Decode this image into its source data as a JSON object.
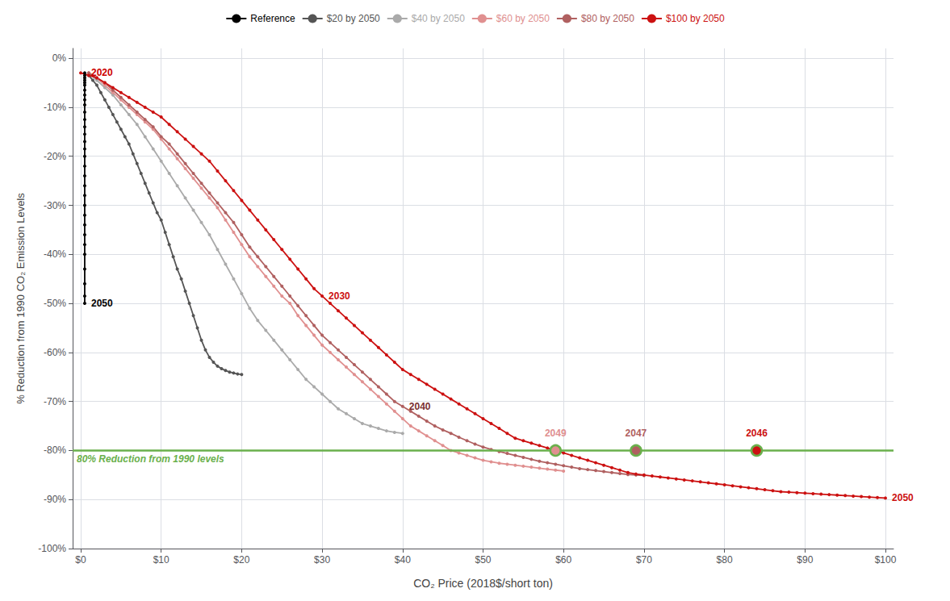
{
  "chart_data": {
    "type": "line",
    "xlabel": "CO₂ Price (2018$/short ton)",
    "ylabel": "% Reduction from 1990 CO₂ Emission Levels",
    "grid": true,
    "legend": "top",
    "marker": "circle",
    "xlim": [
      -1,
      101
    ],
    "ylim": [
      -100,
      2
    ],
    "xticks": [
      {
        "value": 0,
        "label": "$0"
      },
      {
        "value": 10,
        "label": "$10"
      },
      {
        "value": 20,
        "label": "$20"
      },
      {
        "value": 30,
        "label": "$30"
      },
      {
        "value": 40,
        "label": "$40"
      },
      {
        "value": 50,
        "label": "$50"
      },
      {
        "value": 60,
        "label": "$60"
      },
      {
        "value": 70,
        "label": "$70"
      },
      {
        "value": 80,
        "label": "$80"
      },
      {
        "value": 90,
        "label": "$90"
      },
      {
        "value": 100,
        "label": "$100"
      }
    ],
    "yticks": [
      {
        "value": 0,
        "label": "0%"
      },
      {
        "value": -10,
        "label": "-10%"
      },
      {
        "value": -20,
        "label": "-20%"
      },
      {
        "value": -30,
        "label": "-30%"
      },
      {
        "value": -40,
        "label": "-40%"
      },
      {
        "value": -50,
        "label": "-50%"
      },
      {
        "value": -60,
        "label": "-60%"
      },
      {
        "value": -70,
        "label": "-70%"
      },
      {
        "value": -80,
        "label": "-80%"
      },
      {
        "value": -90,
        "label": "-90%"
      },
      {
        "value": -100,
        "label": "-100%"
      }
    ],
    "reference_line": {
      "y": -80,
      "label": "80% Reduction from 1990 levels",
      "color": "#6ab04c"
    },
    "annotations": [
      {
        "text": "2020",
        "x": 0.5,
        "y": -3.0,
        "color": "#cc0000"
      },
      {
        "text": "2050",
        "x": 0.5,
        "y": -50.0,
        "color": "#000000"
      },
      {
        "text": "2040",
        "x": 40,
        "y": -71.0,
        "color": "#7a3030"
      },
      {
        "text": "2030",
        "x": 30,
        "y": -48.5,
        "color": "#cc1111"
      },
      {
        "text": "2050",
        "x": 100,
        "y": -89.7,
        "color": "#cc1111"
      }
    ],
    "series": [
      {
        "name": "Reference",
        "color": "#000000",
        "x": [
          0.5,
          0.5,
          0.5,
          0.5,
          0.5,
          0.5,
          0.5,
          0.5,
          0.5,
          0.5,
          0.5,
          0.5,
          0.5,
          0.5,
          0.5,
          0.5,
          0.5,
          0.5,
          0.5,
          0.5,
          0.5,
          0.5,
          0.5,
          0.5,
          0.5,
          0.5,
          0.5,
          0.5,
          0.5,
          0.5,
          0.5
        ],
        "values": [
          -3.0,
          -3.5,
          -4.0,
          -4.5,
          -5.0,
          -5.5,
          -6.5,
          -7.5,
          -8.5,
          -9.5,
          -11.0,
          -12.5,
          -14.0,
          -15.5,
          -17.0,
          -18.5,
          -20.0,
          -22.0,
          -24.0,
          -26.0,
          -28.0,
          -30.0,
          -32.0,
          -34.0,
          -36.0,
          -38.0,
          -40.0,
          -43.0,
          -46.0,
          -48.5,
          -50.0
        ]
      },
      {
        "name": "$20 by 2050",
        "color": "#555555",
        "x": [
          1,
          1.5,
          2,
          2.5,
          3,
          3.5,
          4,
          4.5,
          5,
          5.5,
          6,
          6.5,
          7,
          7.5,
          8,
          8.5,
          9,
          9.5,
          10,
          10.5,
          11,
          11.5,
          12,
          12.5,
          13,
          13.5,
          14,
          14.5,
          15,
          15.5,
          16,
          16.5,
          17,
          17.5,
          18,
          18.5,
          19,
          19.5,
          20
        ],
        "values": [
          -3.5,
          -4.5,
          -5.5,
          -7.0,
          -8.5,
          -10.0,
          -11.5,
          -13.0,
          -14.5,
          -16.0,
          -17.5,
          -19.5,
          -21.5,
          -23.5,
          -25.5,
          -27.5,
          -29.5,
          -31.5,
          -33.0,
          -35.5,
          -38.0,
          -40.5,
          -43.0,
          -45.0,
          -47.5,
          -50.0,
          -52.5,
          -55.0,
          -57.5,
          -59.5,
          -61.0,
          -62.0,
          -62.8,
          -63.3,
          -63.7,
          -64.0,
          -64.2,
          -64.4,
          -64.5
        ]
      },
      {
        "name": "$40 by 2050",
        "color": "#aaaaaa",
        "x": [
          1,
          2,
          3,
          4,
          5,
          6,
          7,
          8,
          9,
          10,
          11,
          12,
          13,
          14,
          15,
          16,
          17,
          18,
          19,
          20,
          21,
          22,
          23,
          24,
          25,
          26,
          27,
          28,
          29,
          30,
          31,
          32,
          33,
          34,
          35,
          36,
          37,
          38,
          39,
          40
        ],
        "values": [
          -3.0,
          -4.5,
          -6.0,
          -7.5,
          -9.5,
          -11.5,
          -13.5,
          -16.0,
          -18.5,
          -21.0,
          -23.5,
          -26.0,
          -28.5,
          -31.0,
          -33.5,
          -36.0,
          -39.0,
          -42.0,
          -45.0,
          -48.0,
          -51.0,
          -53.5,
          -55.5,
          -57.5,
          -59.5,
          -61.5,
          -63.5,
          -65.5,
          -67.0,
          -68.5,
          -70.0,
          -71.5,
          -72.5,
          -73.5,
          -74.5,
          -75.0,
          -75.5,
          -76.0,
          -76.3,
          -76.5
        ]
      },
      {
        "name": "$60 by 2050",
        "color": "#e09090",
        "x": [
          1,
          2,
          3,
          4,
          5,
          6,
          7,
          8,
          9,
          10,
          11,
          12,
          13,
          14,
          15,
          16,
          17,
          18,
          19,
          20,
          21,
          22,
          23,
          24,
          25,
          26,
          27,
          28,
          29,
          30,
          31,
          32,
          33,
          34,
          35,
          36,
          37,
          38,
          39,
          40,
          41,
          42,
          43,
          44,
          45,
          46,
          47,
          48,
          49,
          50,
          51,
          52,
          53,
          54,
          55,
          56,
          57,
          58,
          59,
          60
        ],
        "values": [
          -3.0,
          -4.0,
          -5.5,
          -7.0,
          -8.5,
          -10.0,
          -11.5,
          -13.0,
          -14.5,
          -16.5,
          -18.5,
          -20.5,
          -22.5,
          -24.5,
          -26.5,
          -28.5,
          -30.5,
          -33.0,
          -35.5,
          -38.0,
          -40.5,
          -42.5,
          -44.5,
          -46.5,
          -48.5,
          -50.0,
          -52.5,
          -54.5,
          -56.5,
          -58.5,
          -60.0,
          -61.5,
          -63.0,
          -64.5,
          -66.0,
          -67.5,
          -69.0,
          -70.5,
          -72.0,
          -73.5,
          -75.0,
          -76.0,
          -77.0,
          -78.0,
          -79.0,
          -80.0,
          -80.5,
          -81.0,
          -81.5,
          -82.0,
          -82.3,
          -82.6,
          -82.8,
          -83.0,
          -83.2,
          -83.4,
          -83.6,
          -83.8,
          -84.0,
          -84.2
        ],
        "crossing": {
          "x": 59,
          "y": -80,
          "label": "2049"
        }
      },
      {
        "name": "$80 by 2050",
        "color": "#b06060",
        "x": [
          1,
          2,
          3,
          4,
          5,
          6,
          7,
          8,
          9,
          10,
          11,
          12,
          13,
          14,
          15,
          16,
          17,
          18,
          19,
          20,
          21,
          22,
          23,
          24,
          25,
          26,
          27,
          28,
          29,
          30,
          31,
          32,
          33,
          34,
          35,
          36,
          37,
          38,
          39,
          40,
          41,
          42,
          43,
          44,
          45,
          46,
          47,
          48,
          49,
          50,
          51,
          52,
          53,
          54,
          55,
          56,
          57,
          58,
          59,
          60,
          61,
          62,
          63,
          64,
          65,
          66,
          67,
          68,
          69,
          70
        ],
        "values": [
          -3.0,
          -4.0,
          -5.0,
          -6.5,
          -8.0,
          -9.5,
          -11.0,
          -12.5,
          -14.0,
          -16.0,
          -17.5,
          -19.5,
          -21.5,
          -23.5,
          -25.5,
          -27.5,
          -29.5,
          -31.5,
          -33.5,
          -36.0,
          -38.5,
          -40.5,
          -42.5,
          -44.5,
          -46.5,
          -48.5,
          -50.5,
          -52.5,
          -54.5,
          -56.5,
          -58.0,
          -59.5,
          -61.0,
          -62.5,
          -64.0,
          -65.5,
          -67.0,
          -68.5,
          -70.0,
          -71.0,
          -72.0,
          -73.0,
          -74.0,
          -75.0,
          -75.8,
          -76.5,
          -77.3,
          -78.0,
          -78.7,
          -79.3,
          -79.8,
          -80.2,
          -80.6,
          -81.0,
          -81.4,
          -81.8,
          -82.2,
          -82.5,
          -82.8,
          -83.1,
          -83.4,
          -83.7,
          -83.9,
          -84.1,
          -84.3,
          -84.5,
          -84.7,
          -84.9,
          -85.0,
          -85.1
        ],
        "crossing": {
          "x": 69,
          "y": -80,
          "label": "2047"
        }
      },
      {
        "name": "$100 by 2050",
        "color": "#cc1111",
        "x": [
          0,
          1,
          2,
          3,
          4,
          5,
          6,
          7,
          8,
          9,
          10,
          11,
          12,
          13,
          14,
          15,
          16,
          17,
          18,
          19,
          20,
          21,
          22,
          23,
          24,
          25,
          26,
          27,
          28,
          29,
          30,
          31,
          32,
          33,
          34,
          35,
          36,
          37,
          38,
          39,
          40,
          41,
          42,
          43,
          44,
          45,
          46,
          47,
          48,
          49,
          50,
          51,
          52,
          53,
          54,
          55,
          56,
          57,
          58,
          59,
          60,
          61,
          62,
          63,
          64,
          65,
          66,
          67,
          68,
          69,
          70,
          71,
          72,
          73,
          74,
          75,
          76,
          77,
          78,
          79,
          80,
          81,
          82,
          83,
          84,
          85,
          86,
          87,
          88,
          89,
          90,
          91,
          92,
          93,
          94,
          95,
          96,
          97,
          98,
          99,
          100
        ],
        "values": [
          -3.0,
          -3.5,
          -4.0,
          -5.0,
          -6.0,
          -7.0,
          -8.0,
          -9.0,
          -10.0,
          -11.0,
          -12.0,
          -13.5,
          -15.0,
          -16.5,
          -18.0,
          -19.5,
          -21.0,
          -23.0,
          -25.0,
          -27.0,
          -29.0,
          -31.0,
          -33.0,
          -35.0,
          -37.0,
          -39.0,
          -41.0,
          -43.0,
          -45.0,
          -47.0,
          -48.5,
          -50.0,
          -51.5,
          -53.0,
          -54.5,
          -56.0,
          -57.5,
          -59.0,
          -60.5,
          -62.0,
          -63.5,
          -64.5,
          -65.5,
          -66.5,
          -67.5,
          -68.5,
          -69.5,
          -70.5,
          -71.5,
          -72.5,
          -73.5,
          -74.5,
          -75.5,
          -76.5,
          -77.5,
          -78.0,
          -78.5,
          -79.0,
          -79.5,
          -80.0,
          -80.5,
          -81.0,
          -81.5,
          -82.0,
          -82.5,
          -83.0,
          -83.5,
          -84.0,
          -84.5,
          -84.8,
          -85.0,
          -85.2,
          -85.4,
          -85.6,
          -85.8,
          -86.0,
          -86.2,
          -86.4,
          -86.6,
          -86.8,
          -87.0,
          -87.2,
          -87.4,
          -87.6,
          -87.8,
          -88.0,
          -88.2,
          -88.4,
          -88.5,
          -88.6,
          -88.7,
          -88.8,
          -88.9,
          -89.0,
          -89.1,
          -89.2,
          -89.3,
          -89.4,
          -89.5,
          -89.6,
          -89.7
        ],
        "crossing": {
          "x": 84,
          "y": -80,
          "label": "2046"
        }
      }
    ]
  }
}
